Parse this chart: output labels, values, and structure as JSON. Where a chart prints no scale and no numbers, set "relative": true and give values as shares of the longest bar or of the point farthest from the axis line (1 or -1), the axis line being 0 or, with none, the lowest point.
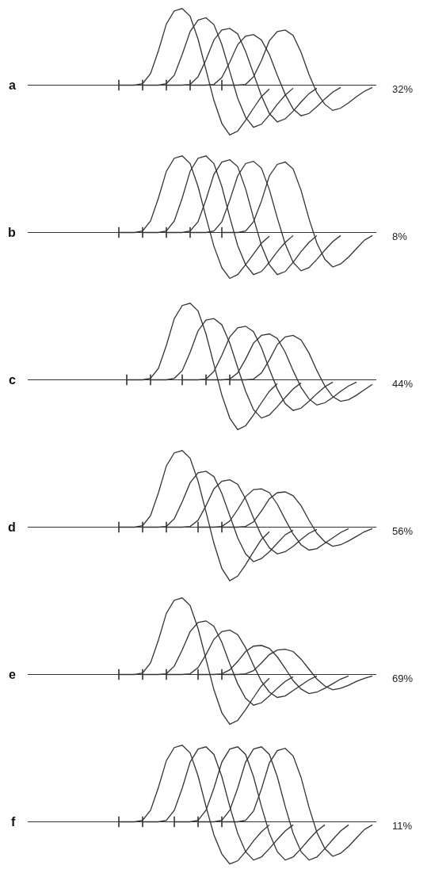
{
  "chart_data": [
    {
      "type": "line",
      "relative": true,
      "title": "a",
      "annotations": [
        "32%"
      ],
      "line_style": "solid",
      "marker": "none",
      "categories": [
        null,
        null,
        null,
        null,
        null,
        null,
        null,
        null,
        null,
        null,
        null,
        null,
        null,
        null,
        null,
        null,
        null,
        null,
        null,
        null,
        null,
        null,
        null,
        null,
        null,
        null,
        null,
        null,
        null,
        null,
        null,
        null,
        null,
        null,
        null,
        null,
        null,
        null,
        null,
        null,
        null,
        null,
        null,
        null
      ],
      "series": [
        {
          "color": "#333333",
          "values": [
            null,
            null,
            null,
            null,
            null,
            null,
            null,
            null,
            null,
            null,
            null,
            0,
            0,
            0,
            0.02,
            0.15,
            0.45,
            0.8,
            0.97,
            1,
            0.9,
            0.6,
            0.2,
            -0.2,
            -0.5,
            -0.65,
            -0.6,
            -0.46,
            -0.3,
            -0.15,
            -0.05,
            null,
            null,
            null,
            null,
            null,
            null,
            null,
            null,
            null,
            null,
            null,
            null,
            null
          ]
        },
        {
          "color": "#333333",
          "values": [
            null,
            null,
            null,
            null,
            null,
            null,
            null,
            null,
            null,
            null,
            null,
            null,
            null,
            null,
            0,
            0,
            0,
            0.02,
            0.13,
            0.4,
            0.7,
            0.85,
            0.88,
            0.79,
            0.53,
            0.18,
            -0.17,
            -0.42,
            -0.55,
            -0.51,
            -0.39,
            -0.25,
            -0.13,
            -0.04,
            null,
            null,
            null,
            null,
            null,
            null,
            null,
            null,
            null,
            null
          ]
        },
        {
          "color": "#333333",
          "values": [
            null,
            null,
            null,
            null,
            null,
            null,
            null,
            null,
            null,
            null,
            null,
            null,
            null,
            null,
            null,
            null,
            null,
            0,
            0,
            0,
            0.01,
            0.11,
            0.33,
            0.59,
            0.72,
            0.74,
            0.67,
            0.44,
            0.15,
            -0.14,
            -0.37,
            -0.48,
            -0.44,
            -0.34,
            -0.22,
            -0.11,
            -0.04,
            null,
            null,
            null,
            null,
            null,
            null,
            null
          ]
        },
        {
          "color": "#333333",
          "values": [
            null,
            null,
            null,
            null,
            null,
            null,
            null,
            null,
            null,
            null,
            null,
            null,
            null,
            null,
            null,
            null,
            null,
            null,
            null,
            null,
            0,
            0,
            0,
            0.01,
            0.1,
            0.3,
            0.53,
            0.64,
            0.66,
            0.59,
            0.4,
            0.13,
            -0.12,
            -0.31,
            -0.4,
            -0.37,
            -0.28,
            -0.18,
            -0.09,
            -0.03,
            null,
            null,
            null,
            null
          ]
        },
        {
          "color": "#333333",
          "values": [
            null,
            null,
            null,
            null,
            null,
            null,
            null,
            null,
            null,
            null,
            null,
            null,
            null,
            null,
            null,
            null,
            null,
            null,
            null,
            null,
            null,
            null,
            null,
            null,
            0,
            0,
            0,
            0.01,
            0.11,
            0.32,
            0.58,
            0.7,
            0.72,
            0.65,
            0.43,
            0.14,
            -0.1,
            -0.25,
            -0.33,
            -0.3,
            -0.23,
            -0.15,
            -0.08,
            -0.03
          ]
        }
      ]
    },
    {
      "type": "line",
      "relative": true,
      "title": "b",
      "annotations": [
        "8%"
      ],
      "line_style": "solid",
      "marker": "none",
      "categories": [
        null,
        null,
        null,
        null,
        null,
        null,
        null,
        null,
        null,
        null,
        null,
        null,
        null,
        null,
        null,
        null,
        null,
        null,
        null,
        null,
        null,
        null,
        null,
        null,
        null,
        null,
        null,
        null,
        null,
        null,
        null,
        null,
        null,
        null,
        null,
        null,
        null,
        null,
        null,
        null,
        null,
        null,
        null,
        null
      ],
      "series": [
        {
          "color": "#333333",
          "values": [
            null,
            null,
            null,
            null,
            null,
            null,
            null,
            null,
            null,
            null,
            null,
            0,
            0,
            0,
            0.02,
            0.15,
            0.45,
            0.8,
            0.97,
            1,
            0.9,
            0.6,
            0.2,
            -0.18,
            -0.46,
            -0.6,
            -0.55,
            -0.42,
            -0.28,
            -0.14,
            -0.05,
            null,
            null,
            null,
            null,
            null,
            null,
            null,
            null,
            null,
            null,
            null,
            null,
            null
          ]
        },
        {
          "color": "#333333",
          "values": [
            null,
            null,
            null,
            null,
            null,
            null,
            null,
            null,
            null,
            null,
            null,
            null,
            null,
            null,
            0,
            0,
            0,
            0.02,
            0.15,
            0.45,
            0.8,
            0.97,
            1,
            0.9,
            0.6,
            0.2,
            -0.17,
            -0.42,
            -0.55,
            -0.51,
            -0.39,
            -0.25,
            -0.13,
            -0.04,
            null,
            null,
            null,
            null,
            null,
            null,
            null,
            null,
            null,
            null
          ]
        },
        {
          "color": "#333333",
          "values": [
            null,
            null,
            null,
            null,
            null,
            null,
            null,
            null,
            null,
            null,
            null,
            null,
            null,
            null,
            null,
            null,
            null,
            0,
            0,
            0,
            0.02,
            0.14,
            0.43,
            0.76,
            0.92,
            0.95,
            0.86,
            0.57,
            0.19,
            -0.17,
            -0.42,
            -0.55,
            -0.51,
            -0.39,
            -0.25,
            -0.13,
            -0.04,
            null,
            null,
            null,
            null,
            null,
            null,
            null
          ]
        },
        {
          "color": "#333333",
          "values": [
            null,
            null,
            null,
            null,
            null,
            null,
            null,
            null,
            null,
            null,
            null,
            null,
            null,
            null,
            null,
            null,
            null,
            null,
            null,
            null,
            0,
            0,
            0,
            0.02,
            0.14,
            0.42,
            0.74,
            0.9,
            0.93,
            0.84,
            0.56,
            0.19,
            -0.15,
            -0.39,
            -0.5,
            -0.46,
            -0.35,
            -0.23,
            -0.12,
            -0.04,
            null,
            null,
            null,
            null
          ]
        },
        {
          "color": "#333333",
          "values": [
            null,
            null,
            null,
            null,
            null,
            null,
            null,
            null,
            null,
            null,
            null,
            null,
            null,
            null,
            null,
            null,
            null,
            null,
            null,
            null,
            null,
            null,
            null,
            null,
            0,
            0,
            0,
            0.02,
            0.14,
            0.41,
            0.74,
            0.89,
            0.92,
            0.83,
            0.55,
            0.18,
            -0.14,
            -0.35,
            -0.45,
            -0.41,
            -0.32,
            -0.21,
            -0.1,
            -0.04
          ]
        }
      ]
    },
    {
      "type": "line",
      "relative": true,
      "title": "c",
      "annotations": [
        "44%"
      ],
      "line_style": "solid",
      "marker": "none",
      "categories": [
        null,
        null,
        null,
        null,
        null,
        null,
        null,
        null,
        null,
        null,
        null,
        null,
        null,
        null,
        null,
        null,
        null,
        null,
        null,
        null,
        null,
        null,
        null,
        null,
        null,
        null,
        null,
        null,
        null,
        null,
        null,
        null,
        null,
        null,
        null,
        null,
        null,
        null,
        null,
        null,
        null,
        null,
        null,
        null
      ],
      "series": [
        {
          "color": "#333333",
          "values": [
            null,
            null,
            null,
            null,
            null,
            null,
            null,
            null,
            null,
            null,
            null,
            null,
            0,
            0,
            0,
            0.02,
            0.15,
            0.45,
            0.8,
            0.97,
            1,
            0.9,
            0.6,
            0.2,
            -0.2,
            -0.5,
            -0.65,
            -0.6,
            -0.46,
            -0.3,
            -0.15,
            -0.05,
            null,
            null,
            null,
            null,
            null,
            null,
            null,
            null,
            null,
            null,
            null,
            null
          ]
        },
        {
          "color": "#333333",
          "values": [
            null,
            null,
            null,
            null,
            null,
            null,
            null,
            null,
            null,
            null,
            null,
            null,
            null,
            null,
            null,
            0,
            0,
            0,
            0.02,
            0.12,
            0.36,
            0.64,
            0.78,
            0.8,
            0.72,
            0.48,
            0.16,
            -0.15,
            -0.39,
            -0.5,
            -0.46,
            -0.35,
            -0.23,
            -0.12,
            -0.04,
            null,
            null,
            null,
            null,
            null,
            null,
            null,
            null,
            null
          ]
        },
        {
          "color": "#333333",
          "values": [
            null,
            null,
            null,
            null,
            null,
            null,
            null,
            null,
            null,
            null,
            null,
            null,
            null,
            null,
            null,
            null,
            null,
            null,
            null,
            0,
            0,
            0,
            0.01,
            0.11,
            0.32,
            0.56,
            0.68,
            0.7,
            0.63,
            0.42,
            0.14,
            -0.12,
            -0.31,
            -0.4,
            -0.37,
            -0.28,
            -0.18,
            -0.09,
            -0.03,
            null,
            null,
            null,
            null,
            null
          ]
        },
        {
          "color": "#333333",
          "values": [
            null,
            null,
            null,
            null,
            null,
            null,
            null,
            null,
            null,
            null,
            null,
            null,
            null,
            null,
            null,
            null,
            null,
            null,
            null,
            null,
            null,
            null,
            0,
            0,
            0,
            0.01,
            0.09,
            0.27,
            0.48,
            0.58,
            0.6,
            0.54,
            0.36,
            0.12,
            -0.1,
            -0.25,
            -0.33,
            -0.3,
            -0.23,
            -0.15,
            -0.08,
            -0.03,
            null,
            null
          ]
        },
        {
          "color": "#333333",
          "values": [
            null,
            null,
            null,
            null,
            null,
            null,
            null,
            null,
            null,
            null,
            null,
            null,
            null,
            null,
            null,
            null,
            null,
            null,
            null,
            null,
            null,
            null,
            null,
            null,
            null,
            0,
            0,
            0,
            0.01,
            0.09,
            0.26,
            0.46,
            0.56,
            0.58,
            0.52,
            0.35,
            0.12,
            -0.08,
            -0.22,
            -0.28,
            -0.26,
            -0.2,
            -0.13,
            -0.06
          ]
        }
      ]
    },
    {
      "type": "line",
      "relative": true,
      "title": "d",
      "annotations": [
        "56%"
      ],
      "line_style": "solid",
      "marker": "none",
      "categories": [
        null,
        null,
        null,
        null,
        null,
        null,
        null,
        null,
        null,
        null,
        null,
        null,
        null,
        null,
        null,
        null,
        null,
        null,
        null,
        null,
        null,
        null,
        null,
        null,
        null,
        null,
        null,
        null,
        null,
        null,
        null,
        null,
        null,
        null,
        null,
        null,
        null,
        null,
        null,
        null,
        null,
        null,
        null,
        null
      ],
      "series": [
        {
          "color": "#333333",
          "values": [
            null,
            null,
            null,
            null,
            null,
            null,
            null,
            null,
            null,
            null,
            null,
            0,
            0,
            0,
            0.02,
            0.15,
            0.45,
            0.8,
            0.97,
            1,
            0.9,
            0.6,
            0.2,
            -0.21,
            -0.54,
            -0.7,
            -0.64,
            -0.49,
            -0.32,
            -0.16,
            -0.06,
            null,
            null,
            null,
            null,
            null,
            null,
            null,
            null,
            null,
            null,
            null,
            null,
            null
          ]
        },
        {
          "color": "#333333",
          "values": [
            null,
            null,
            null,
            null,
            null,
            null,
            null,
            null,
            null,
            null,
            null,
            null,
            null,
            null,
            0,
            0,
            0,
            0.01,
            0.11,
            0.33,
            0.58,
            0.71,
            0.73,
            0.66,
            0.44,
            0.15,
            -0.14,
            -0.35,
            -0.45,
            -0.41,
            -0.32,
            -0.21,
            -0.1,
            -0.04,
            null,
            null,
            null,
            null,
            null,
            null,
            null,
            null,
            null,
            null
          ]
        },
        {
          "color": "#333333",
          "values": [
            null,
            null,
            null,
            null,
            null,
            null,
            null,
            null,
            null,
            null,
            null,
            null,
            null,
            null,
            null,
            null,
            null,
            0,
            0,
            0,
            0.01,
            0.09,
            0.28,
            0.5,
            0.6,
            0.62,
            0.56,
            0.37,
            0.12,
            -0.11,
            -0.27,
            -0.35,
            -0.32,
            -0.25,
            -0.16,
            -0.08,
            -0.03,
            null,
            null,
            null,
            null,
            null,
            null,
            null
          ]
        },
        {
          "color": "#333333",
          "values": [
            null,
            null,
            null,
            null,
            null,
            null,
            null,
            null,
            null,
            null,
            null,
            null,
            null,
            null,
            null,
            null,
            null,
            null,
            null,
            null,
            null,
            0,
            0,
            0,
            0.01,
            0.08,
            0.23,
            0.4,
            0.49,
            0.5,
            0.45,
            0.3,
            0.1,
            -0.09,
            -0.23,
            -0.3,
            -0.28,
            -0.21,
            -0.14,
            -0.07,
            -0.02,
            null,
            null,
            null
          ]
        },
        {
          "color": "#333333",
          "values": [
            null,
            null,
            null,
            null,
            null,
            null,
            null,
            null,
            null,
            null,
            null,
            null,
            null,
            null,
            null,
            null,
            null,
            null,
            null,
            null,
            null,
            null,
            null,
            null,
            0,
            0,
            0,
            0.01,
            0.07,
            0.21,
            0.37,
            0.45,
            0.46,
            0.41,
            0.28,
            0.09,
            -0.08,
            -0.19,
            -0.25,
            -0.23,
            -0.18,
            -0.12,
            -0.06,
            -0.02
          ]
        }
      ]
    },
    {
      "type": "line",
      "relative": true,
      "title": "e",
      "annotations": [
        "69%"
      ],
      "line_style": "solid",
      "marker": "none",
      "categories": [
        null,
        null,
        null,
        null,
        null,
        null,
        null,
        null,
        null,
        null,
        null,
        null,
        null,
        null,
        null,
        null,
        null,
        null,
        null,
        null,
        null,
        null,
        null,
        null,
        null,
        null,
        null,
        null,
        null,
        null,
        null,
        null,
        null,
        null,
        null,
        null,
        null,
        null,
        null,
        null,
        null,
        null,
        null,
        null
      ],
      "series": [
        {
          "color": "#333333",
          "values": [
            null,
            null,
            null,
            null,
            null,
            null,
            null,
            null,
            null,
            null,
            null,
            0,
            0,
            0,
            0.02,
            0.15,
            0.45,
            0.8,
            0.97,
            1,
            0.9,
            0.6,
            0.2,
            -0.2,
            -0.5,
            -0.65,
            -0.6,
            -0.46,
            -0.3,
            -0.15,
            -0.05,
            null,
            null,
            null,
            null,
            null,
            null,
            null,
            null,
            null,
            null,
            null,
            null,
            null
          ]
        },
        {
          "color": "#333333",
          "values": [
            null,
            null,
            null,
            null,
            null,
            null,
            null,
            null,
            null,
            null,
            null,
            null,
            null,
            null,
            0,
            0,
            0,
            0.01,
            0.11,
            0.32,
            0.56,
            0.68,
            0.7,
            0.63,
            0.42,
            0.14,
            -0.12,
            -0.31,
            -0.4,
            -0.37,
            -0.28,
            -0.18,
            -0.09,
            -0.03,
            null,
            null,
            null,
            null,
            null,
            null,
            null,
            null,
            null,
            null
          ]
        },
        {
          "color": "#333333",
          "values": [
            null,
            null,
            null,
            null,
            null,
            null,
            null,
            null,
            null,
            null,
            null,
            null,
            null,
            null,
            null,
            null,
            null,
            0,
            0,
            0,
            0.01,
            0.09,
            0.26,
            0.46,
            0.56,
            0.58,
            0.52,
            0.35,
            0.12,
            -0.09,
            -0.23,
            -0.3,
            -0.28,
            -0.21,
            -0.14,
            -0.07,
            -0.02,
            null,
            null,
            null,
            null,
            null,
            null,
            null
          ]
        },
        {
          "color": "#333333",
          "values": [
            null,
            null,
            null,
            null,
            null,
            null,
            null,
            null,
            null,
            null,
            null,
            null,
            null,
            null,
            null,
            null,
            null,
            null,
            null,
            null,
            null,
            0,
            0,
            0,
            0.01,
            0.06,
            0.17,
            0.3,
            0.37,
            0.38,
            0.34,
            0.23,
            0.08,
            -0.08,
            -0.19,
            -0.25,
            -0.23,
            -0.18,
            -0.12,
            -0.06,
            -0.02,
            null,
            null,
            null
          ]
        },
        {
          "color": "#333333",
          "values": [
            null,
            null,
            null,
            null,
            null,
            null,
            null,
            null,
            null,
            null,
            null,
            null,
            null,
            null,
            null,
            null,
            null,
            null,
            null,
            null,
            null,
            null,
            null,
            null,
            0,
            0,
            0,
            0.01,
            0.05,
            0.15,
            0.26,
            0.32,
            0.33,
            0.3,
            0.2,
            0.07,
            -0.06,
            -0.15,
            -0.2,
            -0.18,
            -0.14,
            -0.09,
            -0.05,
            -0.02
          ]
        }
      ]
    },
    {
      "type": "line",
      "relative": true,
      "title": "f",
      "annotations": [
        "11%"
      ],
      "line_style": "solid",
      "marker": "none",
      "categories": [
        null,
        null,
        null,
        null,
        null,
        null,
        null,
        null,
        null,
        null,
        null,
        null,
        null,
        null,
        null,
        null,
        null,
        null,
        null,
        null,
        null,
        null,
        null,
        null,
        null,
        null,
        null,
        null,
        null,
        null,
        null,
        null,
        null,
        null,
        null,
        null,
        null,
        null,
        null,
        null,
        null,
        null,
        null,
        null
      ],
      "series": [
        {
          "color": "#333333",
          "values": [
            null,
            null,
            null,
            null,
            null,
            null,
            null,
            null,
            null,
            null,
            null,
            0,
            0,
            0,
            0.02,
            0.15,
            0.45,
            0.8,
            0.97,
            1,
            0.9,
            0.6,
            0.2,
            -0.17,
            -0.42,
            -0.55,
            -0.51,
            -0.39,
            -0.25,
            -0.13,
            -0.04,
            null,
            null,
            null,
            null,
            null,
            null,
            null,
            null,
            null,
            null,
            null,
            null,
            null
          ]
        },
        {
          "color": "#333333",
          "values": [
            null,
            null,
            null,
            null,
            null,
            null,
            null,
            null,
            null,
            null,
            null,
            null,
            null,
            null,
            0,
            0,
            0,
            0.02,
            0.15,
            0.44,
            0.78,
            0.95,
            0.98,
            0.88,
            0.59,
            0.2,
            -0.15,
            -0.39,
            -0.5,
            -0.46,
            -0.35,
            -0.23,
            -0.12,
            -0.04,
            null,
            null,
            null,
            null,
            null,
            null,
            null,
            null,
            null,
            null
          ]
        },
        {
          "color": "#333333",
          "values": [
            null,
            null,
            null,
            null,
            null,
            null,
            null,
            null,
            null,
            null,
            null,
            null,
            null,
            null,
            null,
            null,
            null,
            null,
            0,
            0,
            0,
            0.02,
            0.15,
            0.44,
            0.78,
            0.95,
            0.98,
            0.88,
            0.59,
            0.2,
            -0.15,
            -0.39,
            -0.5,
            -0.46,
            -0.35,
            -0.23,
            -0.12,
            -0.04,
            null,
            null,
            null,
            null,
            null,
            null
          ]
        },
        {
          "color": "#333333",
          "values": [
            null,
            null,
            null,
            null,
            null,
            null,
            null,
            null,
            null,
            null,
            null,
            null,
            null,
            null,
            null,
            null,
            null,
            null,
            null,
            null,
            null,
            0,
            0,
            0,
            0.02,
            0.15,
            0.44,
            0.78,
            0.95,
            0.98,
            0.88,
            0.59,
            0.2,
            -0.15,
            -0.39,
            -0.5,
            -0.46,
            -0.35,
            -0.23,
            -0.12,
            -0.04,
            null,
            null,
            null
          ]
        },
        {
          "color": "#333333",
          "values": [
            null,
            null,
            null,
            null,
            null,
            null,
            null,
            null,
            null,
            null,
            null,
            null,
            null,
            null,
            null,
            null,
            null,
            null,
            null,
            null,
            null,
            null,
            null,
            null,
            0,
            0,
            0,
            0.02,
            0.14,
            0.43,
            0.77,
            0.93,
            0.96,
            0.86,
            0.58,
            0.19,
            -0.14,
            -0.35,
            -0.45,
            -0.41,
            -0.32,
            -0.21,
            -0.1,
            -0.04
          ]
        }
      ]
    }
  ]
}
